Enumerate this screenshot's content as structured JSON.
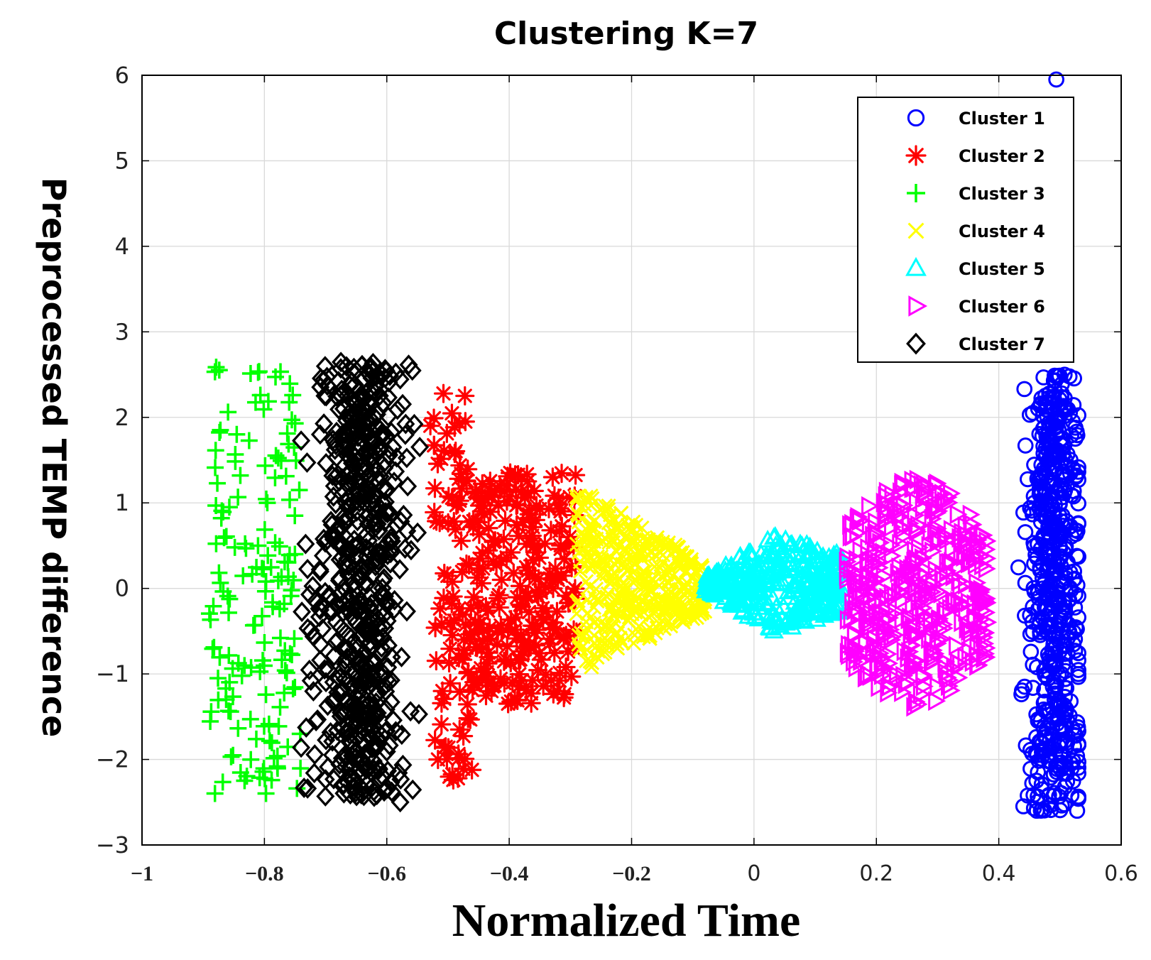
{
  "chart_data": {
    "type": "scatter",
    "title": "Clustering K=7",
    "xlabel": "Normalized Time",
    "ylabel": "Preprocessed TEMP difference",
    "xlim": [
      -1,
      0.6
    ],
    "ylim": [
      -3,
      6
    ],
    "grid": true,
    "x_ticks": [
      -1,
      -0.8,
      -0.6,
      -0.4,
      -0.2,
      0,
      0.2,
      0.4,
      0.6
    ],
    "x_tick_labels": [
      "−1",
      "−0.8",
      "−0.6",
      "−0.4",
      "−0.2",
      "0",
      "0.2",
      "0.4",
      "0.6"
    ],
    "y_ticks": [
      -3,
      -2,
      -1,
      0,
      1,
      2,
      3,
      4,
      5,
      6
    ],
    "y_tick_labels": [
      "−3",
      "−2",
      "−1",
      "0",
      "1",
      "2",
      "3",
      "4",
      "5",
      "6"
    ],
    "legend_position": "top-right",
    "series": [
      {
        "name": "Cluster 1",
        "marker": "circle",
        "color": "#0000ff",
        "x_range": [
          0.38,
          0.53
        ],
        "y_range": [
          -2.6,
          2.5
        ],
        "n_points": 560,
        "outliers": [
          [
            0.494,
            5.95
          ],
          [
            0.528,
            -2.6
          ],
          [
            0.527,
            1.32
          ],
          [
            0.525,
            1.75
          ]
        ]
      },
      {
        "name": "Cluster 2",
        "marker": "asterisk",
        "color": "#ff0000",
        "x_range": [
          -0.53,
          -0.29
        ],
        "y_range": [
          -2.5,
          2.35
        ],
        "n_points": 330
      },
      {
        "name": "Cluster 3",
        "marker": "plus",
        "color": "#00ff00",
        "x_range": [
          -0.89,
          -0.74
        ],
        "y_range": [
          -2.4,
          2.6
        ],
        "n_points": 160
      },
      {
        "name": "Cluster 4",
        "marker": "x",
        "color": "#ffff00",
        "x_range": [
          -0.29,
          -0.08
        ],
        "y_range": [
          -1.2,
          1.3
        ],
        "n_points": 420
      },
      {
        "name": "Cluster 5",
        "marker": "triangle-up",
        "color": "#00ffff",
        "x_range": [
          -0.08,
          0.15
        ],
        "y_range": [
          -0.7,
          0.7
        ],
        "n_points": 380
      },
      {
        "name": "Cluster 6",
        "marker": "triangle-right",
        "color": "#ff00ff",
        "x_range": [
          0.15,
          0.38
        ],
        "y_range": [
          -1.4,
          1.3
        ],
        "n_points": 420
      },
      {
        "name": "Cluster 7",
        "marker": "diamond",
        "color": "#000000",
        "x_range": [
          -0.74,
          -0.53
        ],
        "y_range": [
          -2.5,
          2.65
        ],
        "n_points": 620
      }
    ]
  }
}
